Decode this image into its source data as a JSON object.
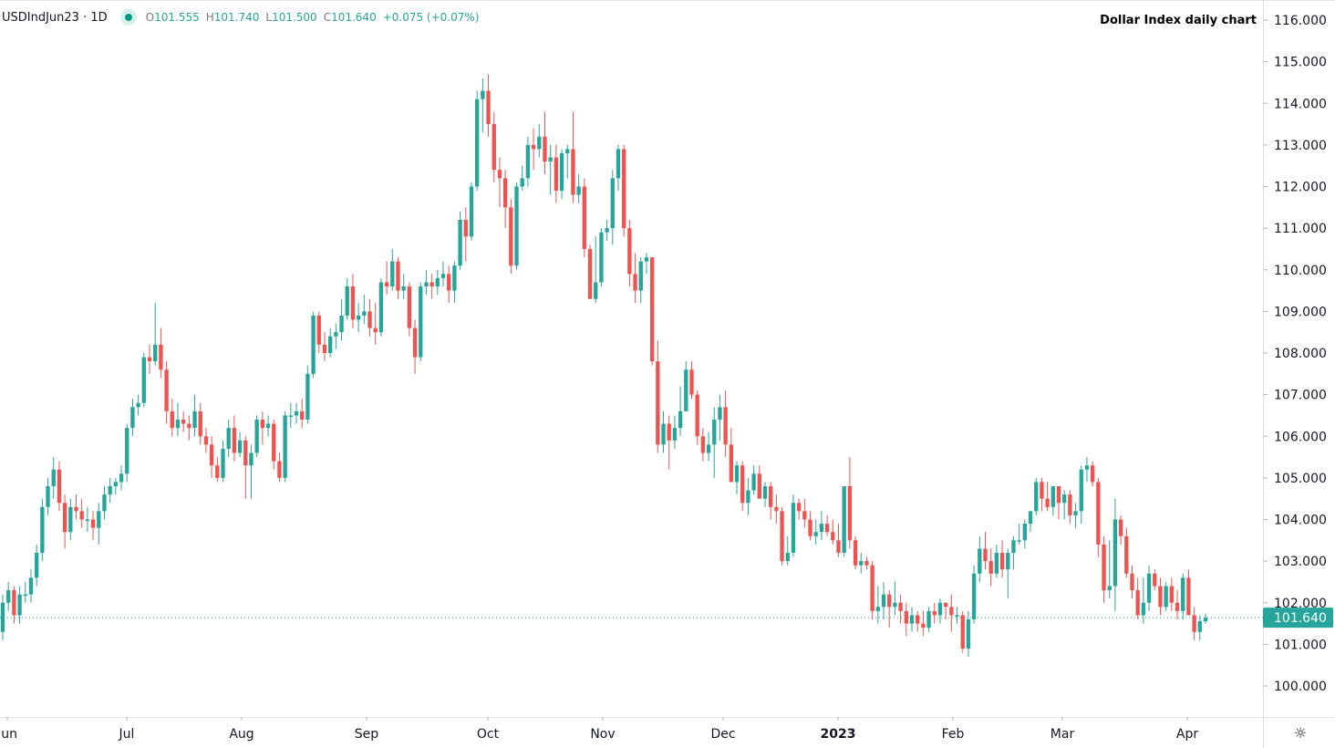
{
  "header": {
    "symbol": "USDIndJun23 · 1D",
    "open_label": "O",
    "open": "101.555",
    "high_label": "H",
    "high": "101.740",
    "low_label": "L",
    "low": "101.500",
    "close_label": "C",
    "close": "101.640",
    "change": "+0.075 (+0.07%)",
    "status_icon": "market-open-dot-icon"
  },
  "title": "Dollar Index daily chart",
  "settings_icon": "gear-icon",
  "colors": {
    "up": "#26a69a",
    "down": "#ef5350",
    "last_price": "#26a69a",
    "axis_text": "#131722"
  },
  "chart_data": {
    "type": "candlestick",
    "title": "Dollar Index daily chart",
    "ylim": [
      99.5,
      116.5
    ],
    "y_ticks": [
      "116.000",
      "115.000",
      "114.000",
      "113.000",
      "112.000",
      "111.000",
      "110.000",
      "109.000",
      "108.000",
      "107.000",
      "106.000",
      "105.000",
      "104.000",
      "103.000",
      "102.000",
      "101.000",
      "100.000"
    ],
    "x_ticks": [
      "Jun",
      "Jul",
      "Aug",
      "Sep",
      "Oct",
      "Nov",
      "Dec",
      "2023",
      "Feb",
      "Mar",
      "Apr"
    ],
    "last_price": 101.64,
    "last_price_label": "101.640",
    "grid": false,
    "candles_ohlc": [
      [
        101.3,
        102.2,
        101.1,
        102.0
      ],
      [
        102.0,
        102.5,
        101.8,
        102.3
      ],
      [
        102.3,
        102.4,
        101.5,
        101.7
      ],
      [
        101.7,
        102.4,
        101.5,
        102.2
      ],
      [
        102.2,
        102.5,
        102.0,
        102.2
      ],
      [
        102.2,
        102.8,
        102.0,
        102.6
      ],
      [
        102.6,
        103.4,
        102.4,
        103.2
      ],
      [
        103.2,
        104.5,
        103.0,
        104.3
      ],
      [
        104.3,
        105.0,
        104.1,
        104.8
      ],
      [
        104.8,
        105.5,
        104.5,
        105.2
      ],
      [
        105.2,
        105.4,
        104.2,
        104.4
      ],
      [
        104.4,
        104.6,
        103.3,
        103.7
      ],
      [
        103.7,
        104.5,
        103.5,
        104.3
      ],
      [
        104.3,
        104.6,
        104.0,
        104.2
      ],
      [
        104.2,
        104.5,
        103.8,
        104.0
      ],
      [
        104.0,
        104.3,
        103.7,
        104.0
      ],
      [
        104.0,
        104.2,
        103.5,
        103.8
      ],
      [
        103.8,
        104.4,
        103.4,
        104.2
      ],
      [
        104.2,
        104.8,
        104.0,
        104.6
      ],
      [
        104.6,
        105.0,
        104.4,
        104.8
      ],
      [
        104.8,
        105.0,
        104.6,
        104.9
      ],
      [
        104.9,
        105.3,
        104.7,
        105.1
      ],
      [
        105.1,
        106.3,
        104.9,
        106.2
      ],
      [
        106.2,
        106.9,
        106.0,
        106.7
      ],
      [
        106.7,
        107.0,
        106.5,
        106.8
      ],
      [
        106.8,
        108.0,
        106.7,
        107.9
      ],
      [
        107.9,
        108.2,
        107.5,
        107.8
      ],
      [
        107.8,
        109.2,
        107.7,
        108.2
      ],
      [
        108.2,
        108.6,
        107.4,
        107.6
      ],
      [
        107.6,
        107.8,
        106.3,
        106.6
      ],
      [
        106.6,
        106.9,
        106.0,
        106.2
      ],
      [
        106.2,
        106.8,
        106.0,
        106.4
      ],
      [
        106.4,
        106.6,
        106.1,
        106.3
      ],
      [
        106.3,
        106.5,
        105.9,
        106.2
      ],
      [
        106.2,
        107.0,
        106.0,
        106.6
      ],
      [
        106.6,
        106.8,
        105.8,
        106.0
      ],
      [
        106.0,
        106.2,
        105.6,
        105.8
      ],
      [
        105.8,
        106.0,
        105.0,
        105.3
      ],
      [
        105.3,
        105.5,
        104.9,
        105.0
      ],
      [
        105.0,
        105.9,
        104.9,
        105.7
      ],
      [
        105.7,
        106.4,
        105.5,
        106.2
      ],
      [
        106.2,
        106.5,
        105.4,
        105.6
      ],
      [
        105.6,
        106.1,
        105.5,
        105.9
      ],
      [
        105.9,
        106.0,
        104.5,
        105.3
      ],
      [
        105.3,
        105.8,
        104.5,
        105.6
      ],
      [
        105.6,
        106.5,
        105.5,
        106.4
      ],
      [
        106.4,
        106.6,
        105.8,
        106.2
      ],
      [
        106.2,
        106.5,
        106.0,
        106.3
      ],
      [
        106.3,
        106.4,
        105.2,
        105.4
      ],
      [
        105.4,
        105.6,
        104.9,
        105.0
      ],
      [
        105.0,
        106.6,
        104.9,
        106.5
      ],
      [
        106.5,
        106.8,
        106.2,
        106.5
      ],
      [
        106.5,
        106.8,
        106.3,
        106.6
      ],
      [
        106.6,
        106.9,
        106.2,
        106.4
      ],
      [
        106.4,
        107.7,
        106.3,
        107.5
      ],
      [
        107.5,
        109.0,
        107.4,
        108.9
      ],
      [
        108.9,
        109.0,
        108.0,
        108.2
      ],
      [
        108.2,
        108.5,
        107.8,
        108.0
      ],
      [
        108.0,
        108.6,
        107.9,
        108.4
      ],
      [
        108.4,
        108.7,
        108.1,
        108.5
      ],
      [
        108.5,
        109.3,
        108.3,
        108.9
      ],
      [
        108.9,
        109.8,
        108.8,
        109.6
      ],
      [
        109.6,
        109.9,
        108.6,
        108.8
      ],
      [
        108.8,
        109.2,
        108.5,
        108.9
      ],
      [
        108.9,
        109.4,
        108.7,
        109.0
      ],
      [
        109.0,
        109.3,
        108.4,
        108.6
      ],
      [
        108.6,
        109.2,
        108.2,
        108.5
      ],
      [
        108.5,
        109.8,
        108.4,
        109.7
      ],
      [
        109.7,
        110.2,
        109.4,
        109.6
      ],
      [
        109.6,
        110.5,
        109.5,
        110.2
      ],
      [
        110.2,
        110.3,
        109.3,
        109.5
      ],
      [
        109.5,
        109.9,
        109.3,
        109.6
      ],
      [
        109.6,
        109.7,
        108.4,
        108.6
      ],
      [
        108.6,
        108.8,
        107.5,
        107.9
      ],
      [
        107.9,
        109.7,
        107.8,
        109.6
      ],
      [
        109.6,
        110.0,
        109.4,
        109.7
      ],
      [
        109.7,
        109.9,
        109.3,
        109.6
      ],
      [
        109.6,
        110.0,
        109.4,
        109.8
      ],
      [
        109.8,
        110.2,
        109.6,
        109.9
      ],
      [
        109.9,
        110.1,
        109.2,
        109.5
      ],
      [
        109.5,
        110.2,
        109.2,
        110.1
      ],
      [
        110.1,
        111.4,
        110.0,
        111.2
      ],
      [
        111.2,
        111.5,
        110.2,
        110.8
      ],
      [
        110.8,
        112.1,
        110.7,
        112.0
      ],
      [
        112.0,
        114.3,
        111.9,
        114.1
      ],
      [
        114.1,
        114.6,
        113.3,
        114.3
      ],
      [
        114.3,
        114.7,
        113.2,
        113.5
      ],
      [
        113.5,
        113.8,
        112.1,
        112.4
      ],
      [
        112.4,
        112.7,
        111.5,
        112.2
      ],
      [
        112.2,
        112.4,
        111.0,
        111.5
      ],
      [
        111.5,
        111.7,
        109.9,
        110.1
      ],
      [
        110.1,
        112.1,
        110.0,
        112.0
      ],
      [
        112.0,
        112.5,
        111.9,
        112.2
      ],
      [
        112.2,
        113.2,
        112.0,
        113.0
      ],
      [
        113.0,
        113.4,
        112.4,
        112.9
      ],
      [
        112.9,
        113.5,
        112.7,
        113.2
      ],
      [
        113.2,
        113.8,
        112.3,
        112.6
      ],
      [
        112.6,
        113.0,
        111.8,
        112.7
      ],
      [
        112.7,
        113.0,
        111.6,
        111.9
      ],
      [
        111.9,
        112.9,
        111.7,
        112.8
      ],
      [
        112.8,
        113.0,
        112.2,
        112.9
      ],
      [
        112.9,
        113.8,
        111.6,
        111.8
      ],
      [
        111.8,
        112.3,
        111.6,
        112.0
      ],
      [
        112.0,
        112.2,
        110.3,
        110.5
      ],
      [
        110.5,
        110.6,
        109.3,
        109.3
      ],
      [
        109.3,
        110.8,
        109.2,
        109.7
      ],
      [
        109.7,
        111.0,
        109.6,
        110.9
      ],
      [
        110.9,
        111.2,
        110.7,
        111.0
      ],
      [
        111.0,
        112.4,
        110.6,
        112.2
      ],
      [
        112.2,
        113.0,
        111.9,
        112.9
      ],
      [
        112.9,
        113.0,
        110.8,
        111.0
      ],
      [
        111.0,
        111.2,
        109.6,
        109.9
      ],
      [
        109.9,
        110.4,
        109.2,
        109.5
      ],
      [
        109.5,
        110.3,
        109.2,
        110.2
      ],
      [
        110.2,
        110.4,
        109.9,
        110.3
      ],
      [
        110.3,
        110.3,
        107.7,
        107.8
      ],
      [
        107.8,
        108.3,
        105.6,
        105.8
      ],
      [
        105.8,
        106.6,
        105.6,
        106.3
      ],
      [
        106.3,
        106.5,
        105.2,
        105.9
      ],
      [
        105.9,
        106.5,
        105.7,
        106.2
      ],
      [
        106.2,
        107.2,
        106.0,
        106.6
      ],
      [
        106.6,
        107.8,
        106.6,
        107.6
      ],
      [
        107.6,
        107.8,
        106.9,
        107.0
      ],
      [
        107.0,
        107.1,
        105.8,
        106.0
      ],
      [
        106.0,
        106.2,
        105.4,
        105.6
      ],
      [
        105.6,
        106.1,
        105.4,
        105.8
      ],
      [
        105.8,
        106.7,
        105.0,
        106.4
      ],
      [
        106.4,
        107.0,
        105.9,
        106.7
      ],
      [
        106.7,
        107.1,
        105.5,
        105.8
      ],
      [
        105.8,
        106.2,
        104.9,
        104.9
      ],
      [
        104.9,
        105.4,
        104.6,
        105.3
      ],
      [
        105.3,
        105.4,
        104.2,
        104.4
      ],
      [
        104.4,
        105.0,
        104.1,
        104.7
      ],
      [
        104.7,
        105.3,
        104.6,
        105.1
      ],
      [
        105.1,
        105.3,
        104.5,
        104.5
      ],
      [
        104.5,
        104.9,
        104.3,
        104.8
      ],
      [
        104.8,
        104.9,
        104.0,
        104.3
      ],
      [
        104.3,
        104.6,
        103.9,
        104.2
      ],
      [
        104.2,
        104.3,
        102.9,
        103.0
      ],
      [
        103.0,
        103.6,
        102.9,
        103.2
      ],
      [
        103.2,
        104.6,
        103.1,
        104.4
      ],
      [
        104.4,
        104.5,
        104.0,
        104.2
      ],
      [
        104.2,
        104.5,
        103.8,
        104.0
      ],
      [
        104.0,
        104.2,
        103.5,
        103.6
      ],
      [
        103.6,
        104.0,
        103.4,
        103.7
      ],
      [
        103.7,
        104.2,
        103.5,
        103.9
      ],
      [
        103.9,
        104.1,
        103.6,
        103.7
      ],
      [
        103.7,
        104.0,
        103.4,
        103.5
      ],
      [
        103.5,
        103.9,
        103.1,
        103.2
      ],
      [
        103.2,
        104.8,
        103.1,
        104.8
      ],
      [
        104.8,
        105.5,
        103.3,
        103.5
      ],
      [
        103.5,
        103.6,
        102.8,
        102.9
      ],
      [
        102.9,
        103.2,
        102.7,
        103.0
      ],
      [
        103.0,
        103.1,
        102.8,
        102.9
      ],
      [
        102.9,
        103.0,
        101.6,
        101.8
      ],
      [
        101.8,
        102.4,
        101.5,
        101.9
      ],
      [
        101.9,
        102.5,
        101.6,
        102.2
      ],
      [
        102.2,
        102.3,
        101.4,
        101.9
      ],
      [
        101.9,
        102.5,
        101.7,
        102.0
      ],
      [
        102.0,
        102.2,
        101.5,
        101.8
      ],
      [
        101.8,
        102.0,
        101.2,
        101.5
      ],
      [
        101.5,
        101.9,
        101.3,
        101.7
      ],
      [
        101.7,
        101.8,
        101.3,
        101.5
      ],
      [
        101.5,
        101.8,
        101.2,
        101.4
      ],
      [
        101.4,
        101.9,
        101.3,
        101.8
      ],
      [
        101.8,
        102.0,
        101.5,
        101.7
      ],
      [
        101.7,
        102.1,
        101.5,
        102.0
      ],
      [
        102.0,
        102.0,
        101.6,
        101.9
      ],
      [
        101.9,
        102.2,
        101.3,
        101.7
      ],
      [
        101.7,
        101.9,
        101.5,
        101.7
      ],
      [
        101.7,
        101.8,
        100.8,
        100.9
      ],
      [
        100.9,
        101.8,
        100.7,
        101.6
      ],
      [
        101.6,
        102.9,
        101.5,
        102.7
      ],
      [
        102.7,
        103.6,
        102.5,
        103.3
      ],
      [
        103.3,
        103.7,
        102.8,
        103.0
      ],
      [
        103.0,
        103.3,
        102.4,
        102.7
      ],
      [
        102.7,
        103.4,
        102.6,
        103.2
      ],
      [
        103.2,
        103.5,
        102.6,
        102.8
      ],
      [
        102.8,
        103.3,
        102.1,
        103.2
      ],
      [
        103.2,
        103.6,
        102.8,
        103.5
      ],
      [
        103.5,
        103.9,
        103.4,
        103.5
      ],
      [
        103.5,
        104.0,
        103.3,
        103.9
      ],
      [
        103.9,
        104.2,
        103.7,
        104.2
      ],
      [
        104.2,
        105.0,
        104.1,
        104.9
      ],
      [
        104.9,
        105.0,
        104.2,
        104.5
      ],
      [
        104.5,
        104.9,
        104.2,
        104.3
      ],
      [
        104.3,
        104.8,
        104.1,
        104.8
      ],
      [
        104.8,
        104.8,
        104.0,
        104.4
      ],
      [
        104.4,
        104.7,
        104.0,
        104.6
      ],
      [
        104.6,
        104.7,
        103.9,
        104.1
      ],
      [
        104.1,
        104.4,
        103.8,
        104.2
      ],
      [
        104.2,
        105.3,
        103.9,
        105.2
      ],
      [
        105.2,
        105.5,
        104.9,
        105.3
      ],
      [
        105.3,
        105.4,
        104.8,
        104.9
      ],
      [
        104.9,
        105.0,
        103.1,
        103.4
      ],
      [
        103.4,
        103.6,
        102.0,
        102.3
      ],
      [
        102.3,
        103.5,
        102.1,
        102.4
      ],
      [
        102.4,
        104.5,
        101.8,
        104.0
      ],
      [
        104.0,
        104.1,
        103.4,
        103.6
      ],
      [
        103.6,
        103.8,
        102.6,
        102.7
      ],
      [
        102.7,
        102.9,
        102.1,
        102.3
      ],
      [
        102.3,
        102.6,
        101.6,
        101.7
      ],
      [
        101.7,
        102.6,
        101.5,
        102.0
      ],
      [
        102.0,
        102.9,
        101.8,
        102.7
      ],
      [
        102.7,
        102.8,
        102.3,
        102.4
      ],
      [
        102.4,
        102.6,
        101.7,
        101.9
      ],
      [
        101.9,
        102.5,
        101.8,
        102.4
      ],
      [
        102.4,
        102.6,
        101.8,
        102.0
      ],
      [
        102.0,
        102.3,
        101.6,
        101.8
      ],
      [
        101.8,
        102.7,
        101.6,
        102.6
      ],
      [
        102.6,
        102.8,
        101.7,
        101.7
      ],
      [
        101.7,
        101.9,
        101.1,
        101.3
      ],
      [
        101.3,
        101.7,
        101.1,
        101.555
      ],
      [
        101.555,
        101.74,
        101.5,
        101.64
      ]
    ]
  }
}
